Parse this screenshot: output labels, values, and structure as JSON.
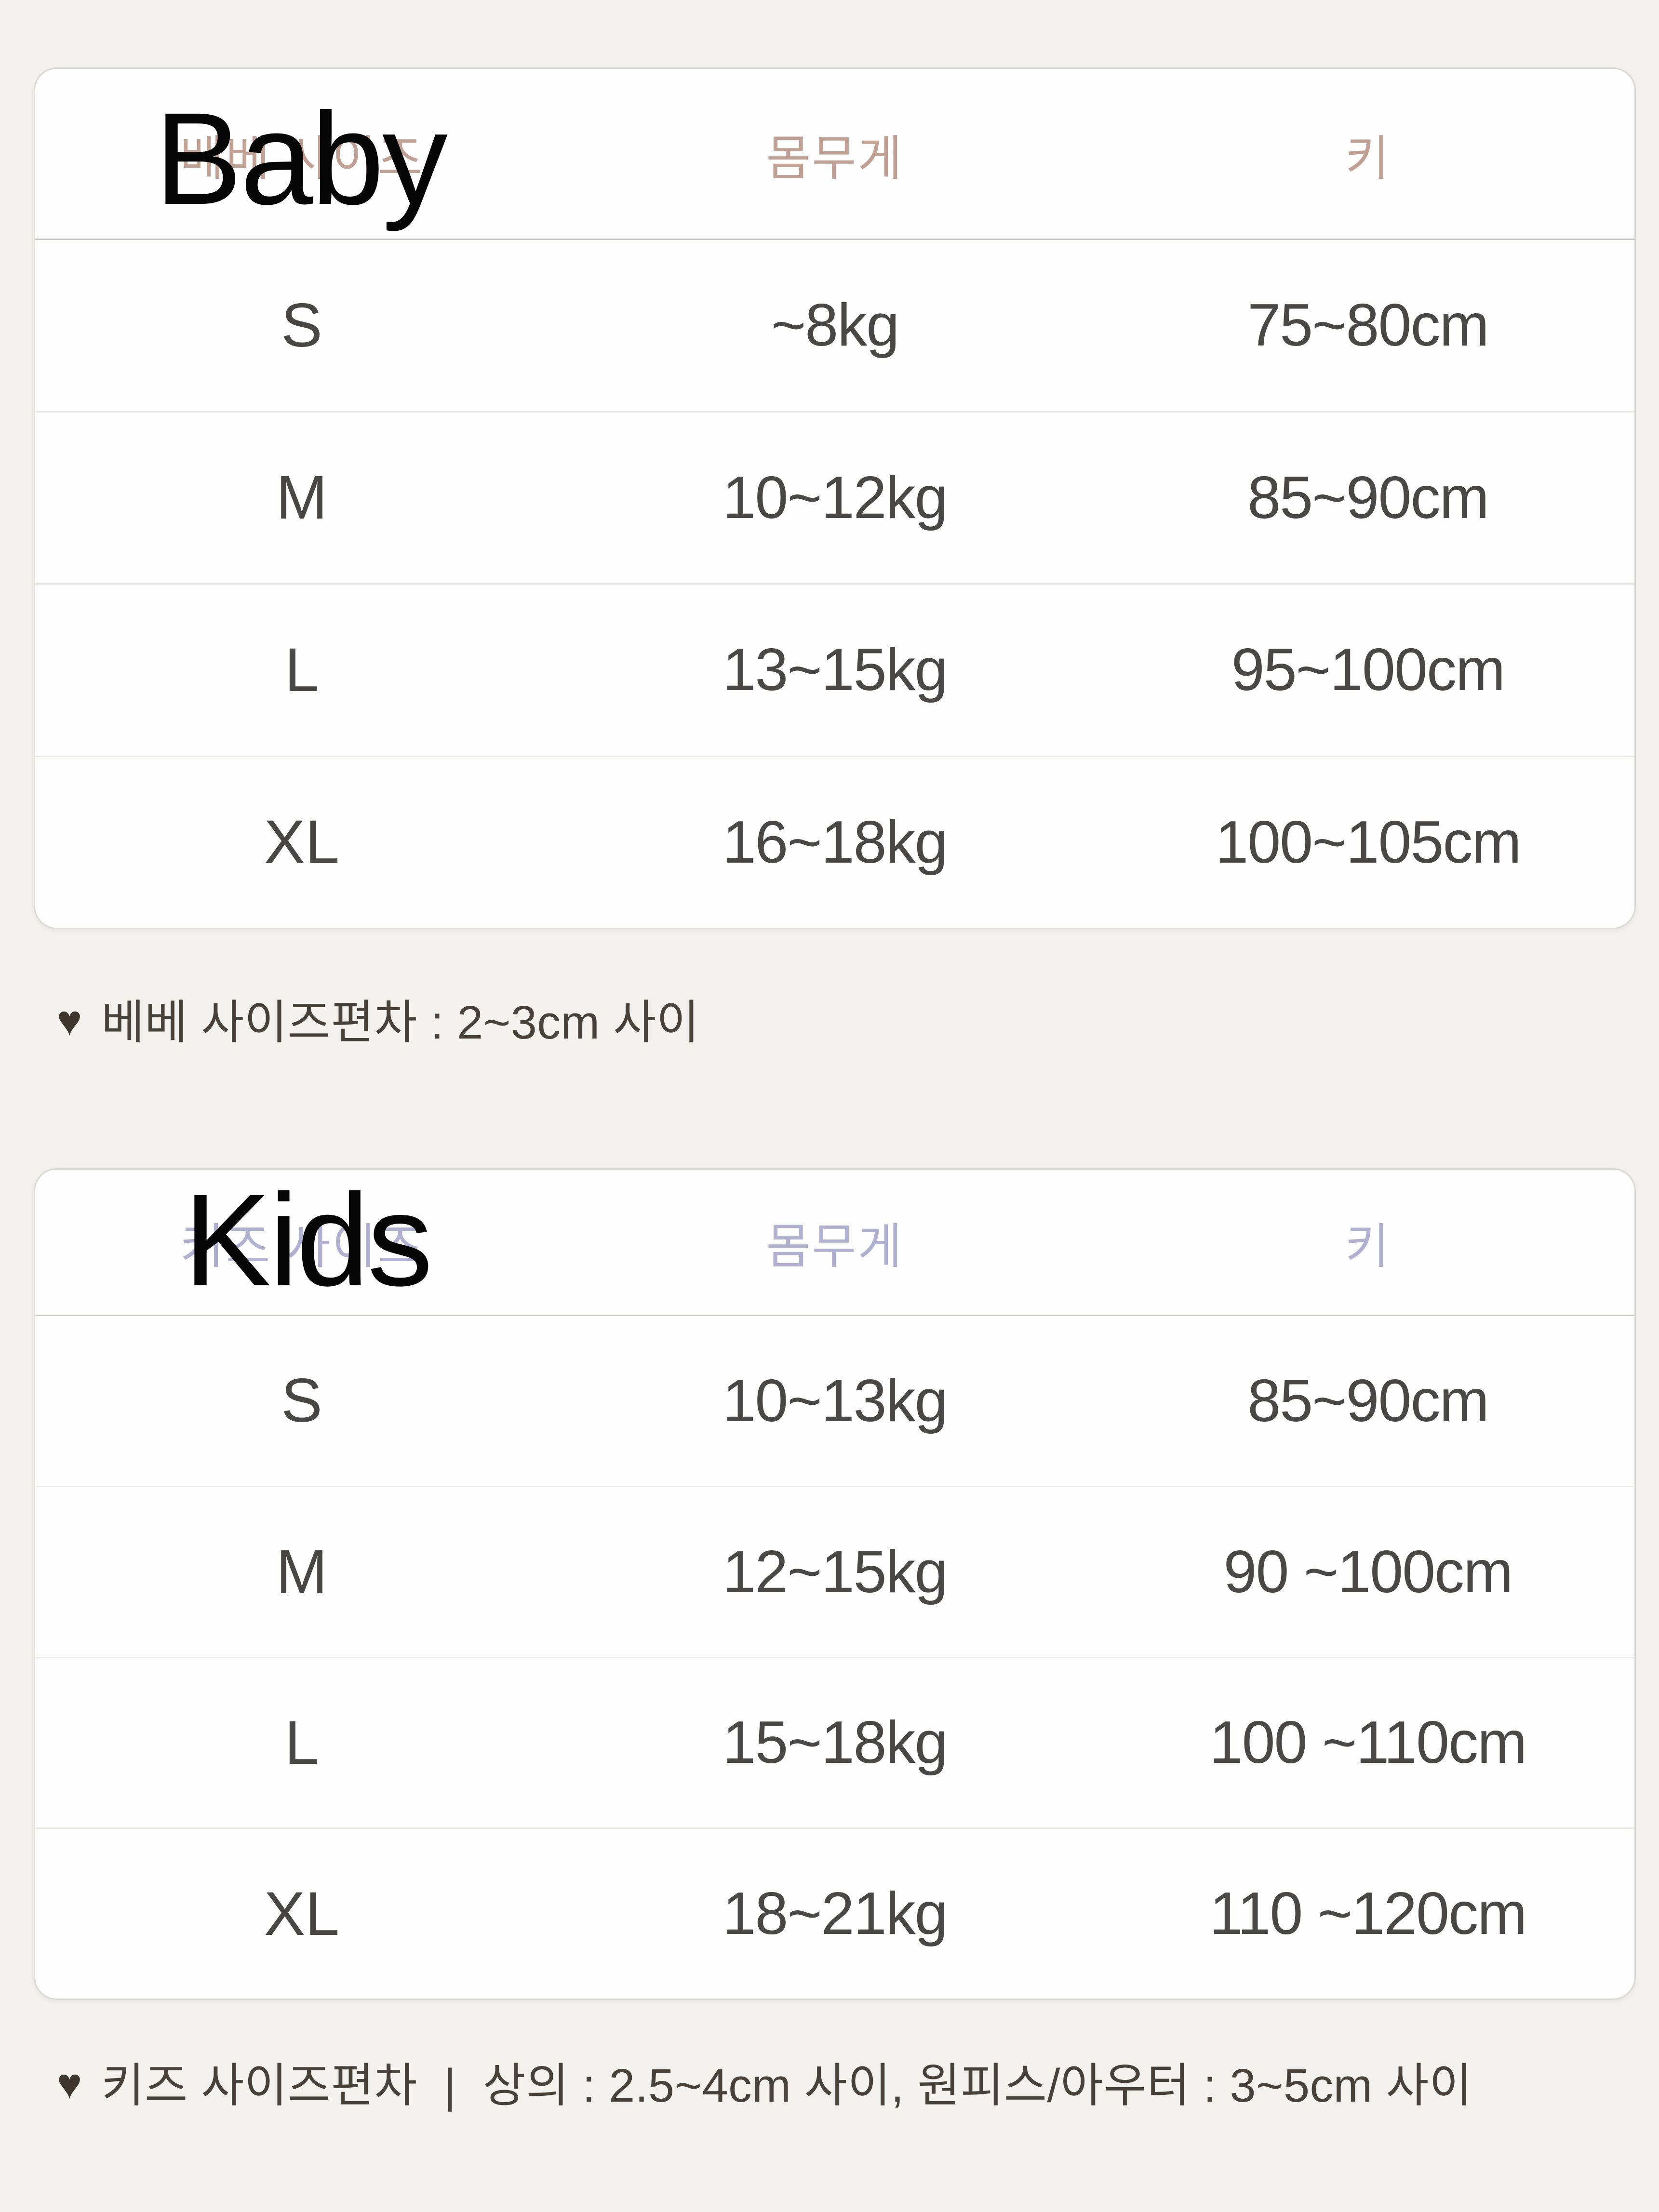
{
  "page": {
    "background_color": "#f2f1ee",
    "card_color": "#fefefe"
  },
  "baby_table": {
    "overlay_title": "Baby",
    "header_text_color": "#c1a094",
    "columns": {
      "size": "베베 사이즈",
      "weight": "몸무게",
      "height": "키"
    },
    "rows": [
      {
        "size": "S",
        "weight": "~8kg",
        "height": "75~80cm"
      },
      {
        "size": "M",
        "weight": "10~12kg",
        "height": "85~90cm"
      },
      {
        "size": "L",
        "weight": "13~15kg",
        "height": "95~100cm"
      },
      {
        "size": "XL",
        "weight": "16~18kg",
        "height": "100~105cm"
      }
    ],
    "note": {
      "icon": "heart-icon",
      "icon_glyph": "♥",
      "text": "베베 사이즈편차 : 2~3cm 사이"
    }
  },
  "kids_table": {
    "overlay_title": "Kids",
    "header_text_color": "#b0b0d0",
    "columns": {
      "size": "키즈 사이즈",
      "weight": "몸무게",
      "height": "키"
    },
    "rows": [
      {
        "size": "S",
        "weight": "10~13kg",
        "height": "85~90cm"
      },
      {
        "size": "M",
        "weight": "12~15kg",
        "height": "90 ~100cm"
      },
      {
        "size": "L",
        "weight": "15~18kg",
        "height": "100 ~110cm"
      },
      {
        "size": "XL",
        "weight": "18~21kg",
        "height": "110 ~120cm"
      }
    ],
    "note": {
      "icon": "heart-icon",
      "icon_glyph": "♥",
      "text": "키즈 사이즈편차  |  상의 : 2.5~4cm 사이, 원피스/아우터 : 3~5cm 사이"
    }
  }
}
